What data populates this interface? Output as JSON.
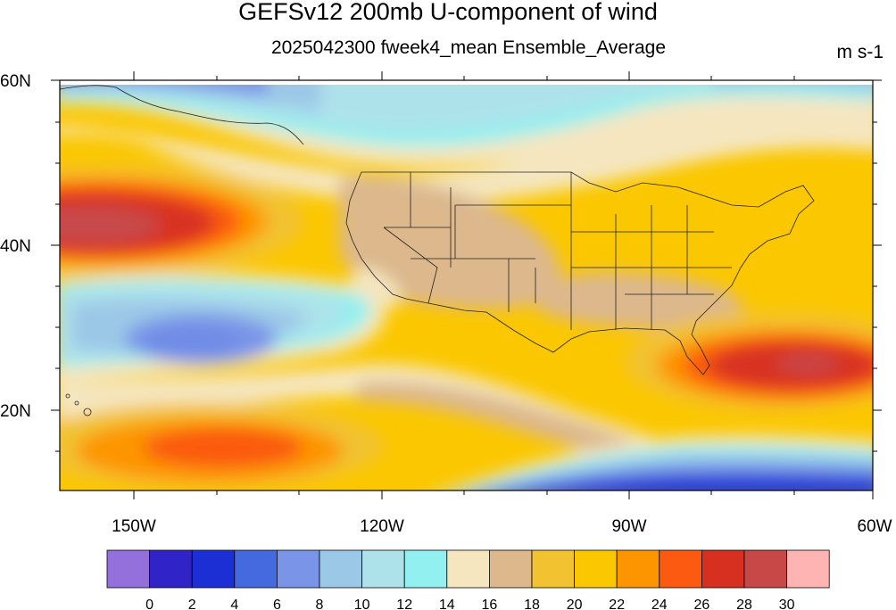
{
  "title": "GEFSv12 200mb U-component of wind",
  "subtitle": "2025042300 fweek4_mean Ensemble_Average",
  "units": "m s-1",
  "lat_labels": [
    "60N",
    "40N",
    "20N"
  ],
  "lon_labels": [
    "150W",
    "120W",
    "90W",
    "60W"
  ],
  "colorbar": {
    "labels": [
      "0",
      "2",
      "4",
      "6",
      "8",
      "10",
      "12",
      "14",
      "16",
      "18",
      "20",
      "22",
      "24",
      "26",
      "28",
      "30"
    ],
    "colors": [
      "#9370db",
      "#3023c8",
      "#1b2fd4",
      "#4569de",
      "#7a95e8",
      "#9cc8e8",
      "#aee2ea",
      "#93f0f0",
      "#f5e6c0",
      "#dcb88c",
      "#f2c230",
      "#fbc700",
      "#fd9500",
      "#fb5a10",
      "#d83020",
      "#c84848",
      "#ffb4b4"
    ]
  }
}
